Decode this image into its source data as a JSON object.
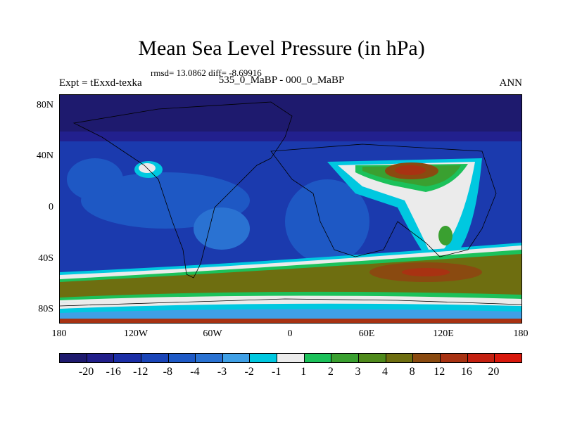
{
  "title": "Mean Sea Level Pressure (in hPa)",
  "stats": "rmsd= 13.0862 diff= -8.69916",
  "expt": "Expt = tExxd-texka",
  "subtitle": "535_0_MaBP - 000_0_MaBP",
  "period": "ANN",
  "lat_labels": [
    "80N",
    "40N",
    "0",
    "40S",
    "80S"
  ],
  "lat_values": [
    80,
    40,
    0,
    -40,
    -80
  ],
  "lon_labels": [
    "180",
    "120W",
    "60W",
    "0",
    "60E",
    "120E",
    "180"
  ],
  "lon_values": [
    -180,
    -120,
    -60,
    0,
    60,
    120,
    180
  ],
  "colorbar": {
    "labels": [
      "-20",
      "-16",
      "-12",
      "-8",
      "-4",
      "-3",
      "-2",
      "-1",
      "1",
      "2",
      "3",
      "4",
      "8",
      "12",
      "16",
      "20"
    ],
    "colors": [
      "#1e1a6e",
      "#211e8a",
      "#1b2ea6",
      "#1a45b8",
      "#1e5ac6",
      "#2a72d2",
      "#3fa0e6",
      "#00c8e0",
      "#ebebeb",
      "#1cc15a",
      "#3aa030",
      "#4f8a1c",
      "#6e6e10",
      "#8a4a10",
      "#a83212",
      "#c42010",
      "#d8180c"
    ]
  },
  "colors": {
    "deep": "#1e1a6e",
    "dark": "#22208e",
    "blue": "#1b3aae",
    "mid": "#1e58c4",
    "light": "#2a72d2",
    "sky": "#3fa0e6",
    "cyan": "#00c8e0",
    "white": "#ebebeb",
    "green": "#1cc15a",
    "dgreen": "#3aa030",
    "olive": "#6e6e10",
    "brown": "#8a4a10",
    "red": "#a83212"
  }
}
